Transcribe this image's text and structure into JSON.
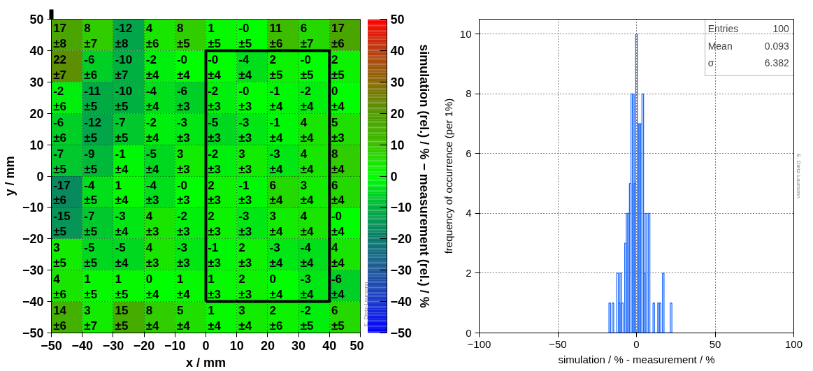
{
  "chart_data": [
    {
      "type": "heatmap",
      "xlabel": "x / mm",
      "ylabel": "y / mm",
      "clabel": "simulation (rel.) / % − measurement (rel.) / %",
      "xlim": [
        -50,
        50
      ],
      "ylim": [
        -50,
        50
      ],
      "xticks": [
        {
          "value": -50,
          "label": "−50"
        },
        {
          "value": -40,
          "label": "−40"
        },
        {
          "value": -30,
          "label": "−30"
        },
        {
          "value": -20,
          "label": "−20"
        },
        {
          "value": -10,
          "label": "−10"
        },
        0,
        10,
        20,
        30,
        40,
        50
      ],
      "yticks": [
        {
          "value": -50,
          "label": "−50"
        },
        {
          "value": -40,
          "label": "−40"
        },
        {
          "value": -30,
          "label": "−30"
        },
        {
          "value": -20,
          "label": "−20"
        },
        {
          "value": -10,
          "label": "−10"
        },
        0,
        10,
        20,
        30,
        40,
        50
      ],
      "clim": [
        -50,
        50
      ],
      "cticks": [
        {
          "value": -50,
          "label": "−50"
        },
        {
          "value": -40,
          "label": "−40"
        },
        {
          "value": -30,
          "label": "−30"
        },
        {
          "value": -20,
          "label": "−20"
        },
        {
          "value": -10,
          "label": "−10"
        },
        0,
        10,
        20,
        30,
        40,
        50
      ],
      "grid": true,
      "cells": [
        [
          17,
          8,
          -12,
          4,
          8,
          1,
          0,
          11,
          6,
          17
        ],
        [
          22,
          -6,
          -10,
          -2,
          0,
          0,
          -4,
          2,
          0,
          2
        ],
        [
          -2,
          -11,
          -10,
          -4,
          -6,
          -2,
          0,
          -1,
          -2,
          0
        ],
        [
          -6,
          -12,
          -7,
          -2,
          -3,
          -5,
          -3,
          -1,
          4,
          5
        ],
        [
          -7,
          -9,
          -1,
          -5,
          3,
          -2,
          3,
          -3,
          4,
          8
        ],
        [
          -17,
          -4,
          1,
          -4,
          0,
          2,
          -1,
          6,
          3,
          6
        ],
        [
          -15,
          -7,
          -3,
          4,
          -2,
          2,
          -3,
          3,
          4,
          0
        ],
        [
          3,
          -5,
          -5,
          4,
          -3,
          -1,
          2,
          -3,
          -4,
          4
        ],
        [
          4,
          1,
          1,
          0,
          1,
          1,
          2,
          0,
          -3,
          -6
        ],
        [
          14,
          3,
          15,
          8,
          5,
          1,
          3,
          2,
          -2,
          6
        ]
      ],
      "cell_labels": [
        [
          "17\n±8",
          "8\n±7",
          "-12\n±8",
          "4\n±6",
          "8\n±5",
          "1\n±5",
          "-0\n±5",
          "11\n±6",
          "6\n±7",
          "17\n±6"
        ],
        [
          "22\n±7",
          "-6\n±6",
          "-10\n±7",
          "-2\n±4",
          "-0\n±4",
          "-0\n±4",
          "-4\n±4",
          "2\n±5",
          "-0\n±5",
          "2\n±5"
        ],
        [
          "-2\n±6",
          "-11\n±5",
          "-10\n±5",
          "-4\n±4",
          "-6\n±3",
          "-2\n±3",
          "-0\n±3",
          "-1\n±4",
          "-2\n±4",
          "0\n±4"
        ],
        [
          "-6\n±6",
          "-12\n±5",
          "-7\n±5",
          "-2\n±4",
          "-3\n±3",
          "-5\n±3",
          "-3\n±3",
          "-1\n±4",
          "4\n±4",
          "5\n±3"
        ],
        [
          "-7\n±5",
          "-9\n±5",
          "-1\n±4",
          "-5\n±4",
          "3\n±3",
          "-2\n±3",
          "3\n±3",
          "-3\n±4",
          "4\n±4",
          "8\n±4"
        ],
        [
          "-17\n±6",
          "-4\n±5",
          "1\n±4",
          "-4\n±3",
          "-0\n±3",
          "2\n±3",
          "-1\n±3",
          "6\n±4",
          "3\n±4",
          "6\n±4"
        ],
        [
          "-15\n±5",
          "-7\n±5",
          "-3\n±4",
          "4\n±3",
          "-2\n±3",
          "2\n±3",
          "-3\n±3",
          "3\n±4",
          "4\n±4",
          "-0\n±4"
        ],
        [
          "3\n±5",
          "-5\n±5",
          "-5\n±4",
          "4\n±3",
          "-3\n±3",
          "-1\n±3",
          "2\n±3",
          "-3\n±4",
          "-4\n±4",
          "4\n±4"
        ],
        [
          "4\n±6",
          "1\n±5",
          "1\n±5",
          "0\n±4",
          "1\n±4",
          "1\n±3",
          "2\n±3",
          "0\n±4",
          "-3\n±4",
          "-6\n±4"
        ],
        [
          "14\n±6",
          "3\n±7",
          "15\n±5",
          "8\n±4",
          "5\n±4",
          "1\n±4",
          "3\n±4",
          "2\n±6",
          "-2\n±5",
          "6\n±5"
        ]
      ],
      "annotations": [
        "E. Dietz-Laursonn"
      ]
    },
    {
      "type": "histogram",
      "xlabel": "simulation / % - measurement / %",
      "ylabel": "frequency of occurrence (per 1%)",
      "bins": [
        -17.5,
        -16.5,
        -15.5,
        -14.5,
        -13.5,
        -12.5,
        -11.5,
        -10.5,
        -9.5,
        -8.5,
        -7.5,
        -6.5,
        -5.5,
        -4.5,
        -3.5,
        -2.5,
        -1.5,
        -0.5,
        0.5,
        1.5,
        2.5,
        3.5,
        4.5,
        5.5,
        6.5,
        7.5,
        8.5,
        9.5,
        10.5,
        11.5,
        12.5,
        13.5,
        14.5,
        15.5,
        16.5,
        17.5,
        18.5,
        19.5,
        20.5,
        21.5,
        22.5
      ],
      "values": [
        1,
        0,
        1,
        0,
        0,
        2,
        1,
        2,
        1,
        0,
        3,
        4,
        4,
        5,
        8,
        8,
        5,
        10,
        7,
        7,
        7,
        8,
        2,
        4,
        0,
        4,
        0,
        0,
        1,
        0,
        0,
        1,
        1,
        0,
        2,
        0,
        0,
        0,
        0,
        1
      ],
      "color": "#1f6bff",
      "xlim": [
        -100,
        100
      ],
      "ylim": [
        0,
        10.5
      ],
      "xticks": [
        {
          "value": -100,
          "label": "−100"
        },
        {
          "value": -50,
          "label": "−50"
        },
        0,
        50,
        100
      ],
      "yticks": [
        0,
        2,
        4,
        6,
        8,
        10
      ],
      "grid": true,
      "annotations": [
        "Entries 100",
        "Mean 0.093",
        "σ 6.382",
        "E. Dietz-Laursonn"
      ]
    }
  ]
}
